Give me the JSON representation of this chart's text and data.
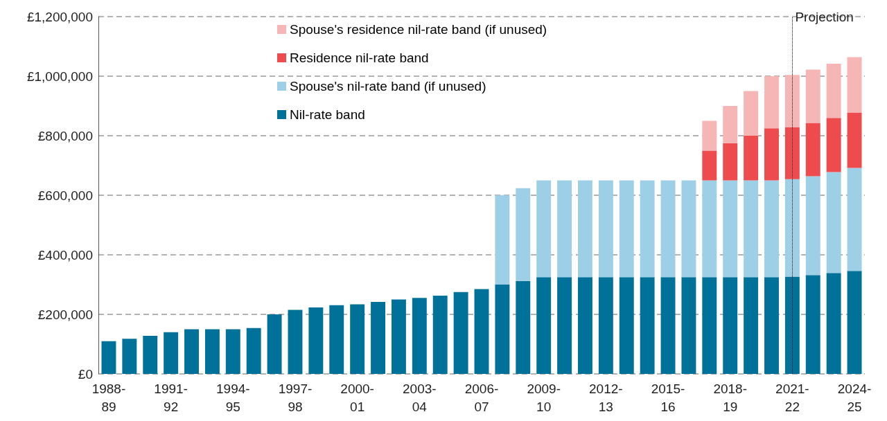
{
  "chart_data": {
    "type": "bar",
    "stacked": true,
    "categories": [
      "1988-89",
      null,
      null,
      "1991-92",
      null,
      null,
      "1994-95",
      null,
      null,
      "1997-98",
      null,
      null,
      "2000-01",
      null,
      null,
      "2003-04",
      null,
      null,
      "2006-07",
      null,
      null,
      "2009-10",
      null,
      null,
      "2012-13",
      null,
      null,
      "2015-16",
      null,
      null,
      "2018-19",
      null,
      null,
      "2021-22",
      null,
      null,
      "2024-25"
    ],
    "series": [
      {
        "name": "Nil-rate band",
        "color": "#00729a",
        "values": [
          110000,
          118000,
          128000,
          140000,
          150000,
          150000,
          150000,
          154000,
          200000,
          215000,
          223000,
          231000,
          234000,
          242000,
          250000,
          255000,
          263000,
          275000,
          285000,
          300000,
          312000,
          325000,
          325000,
          325000,
          325000,
          325000,
          325000,
          325000,
          325000,
          325000,
          325000,
          325000,
          325000,
          327000,
          332000,
          339000,
          346000
        ]
      },
      {
        "name": "Spouse's nil-rate band (if unused)",
        "color": "#9dcfe6",
        "values": [
          null,
          null,
          null,
          null,
          null,
          null,
          null,
          null,
          null,
          null,
          null,
          null,
          null,
          null,
          null,
          null,
          null,
          null,
          null,
          300000,
          312000,
          325000,
          325000,
          325000,
          325000,
          325000,
          325000,
          325000,
          325000,
          325000,
          325000,
          325000,
          325000,
          327000,
          332000,
          339000,
          346000
        ]
      },
      {
        "name": "Residence nil-rate band",
        "color": "#ee4b4f",
        "values": [
          null,
          null,
          null,
          null,
          null,
          null,
          null,
          null,
          null,
          null,
          null,
          null,
          null,
          null,
          null,
          null,
          null,
          null,
          null,
          null,
          null,
          null,
          null,
          null,
          null,
          null,
          null,
          null,
          null,
          100000,
          125000,
          150000,
          175000,
          175000,
          179000,
          182000,
          186000
        ]
      },
      {
        "name": "Spouse's residence nil-rate band (if unused)",
        "color": "#f7b6b6",
        "values": [
          null,
          null,
          null,
          null,
          null,
          null,
          null,
          null,
          null,
          null,
          null,
          null,
          null,
          null,
          null,
          null,
          null,
          null,
          null,
          null,
          null,
          null,
          null,
          null,
          null,
          null,
          null,
          null,
          null,
          100000,
          125000,
          150000,
          175000,
          175000,
          179000,
          182000,
          186000
        ]
      }
    ],
    "ylim": [
      0,
      1200000
    ],
    "yticks": [
      {
        "value": 0,
        "label": "£0"
      },
      {
        "value": 200000,
        "label": "£200,000"
      },
      {
        "value": 400000,
        "label": "£400,000"
      },
      {
        "value": 600000,
        "label": "£600,000"
      },
      {
        "value": 800000,
        "label": "£800,000"
      },
      {
        "value": 1000000,
        "label": "£1,000,000"
      },
      {
        "value": 1200000,
        "label": "£1,200,000"
      }
    ],
    "grid": "y",
    "legend": "top left",
    "ref_lines": [
      {
        "axis": "x",
        "value": "2021-22",
        "label": "Projection",
        "color": "#000000",
        "line_style": "dotted"
      }
    ]
  }
}
